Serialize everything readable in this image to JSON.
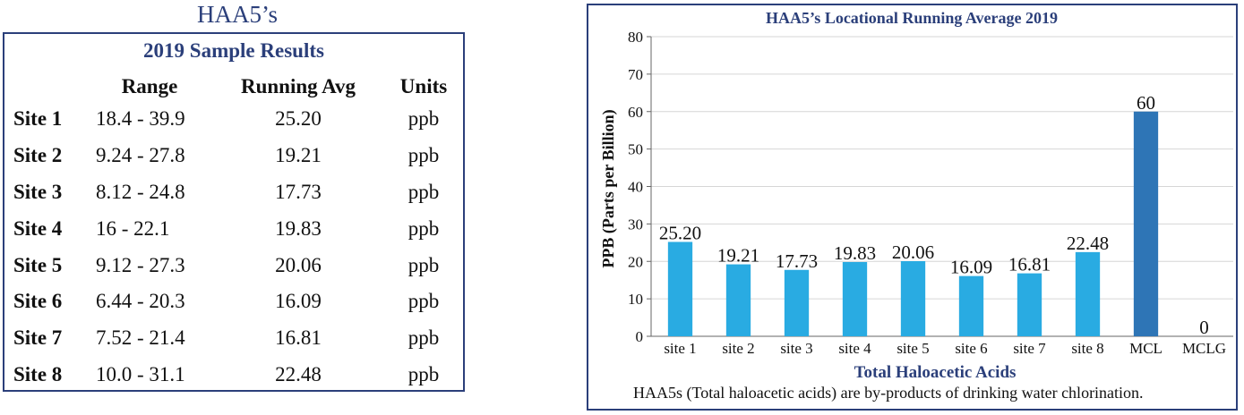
{
  "left_panel": {
    "heading": "HAA5’s",
    "table_title": "2019 Sample Results",
    "columns": {
      "range": "Range",
      "avg": "Running Avg",
      "units": "Units"
    },
    "rows": [
      {
        "site": "Site 1",
        "range": "18.4 - 39.9",
        "avg": "25.20",
        "unit": "ppb"
      },
      {
        "site": "Site 2",
        "range": "9.24 - 27.8",
        "avg": "19.21",
        "unit": "ppb"
      },
      {
        "site": "Site 3",
        "range": "8.12 - 24.8",
        "avg": "17.73",
        "unit": "ppb"
      },
      {
        "site": "Site 4",
        "range": "16 - 22.1",
        "avg": "19.83",
        "unit": "ppb"
      },
      {
        "site": "Site 5",
        "range": "9.12 - 27.3",
        "avg": "20.06",
        "unit": "ppb"
      },
      {
        "site": "Site 6",
        "range": "6.44 - 20.3",
        "avg": "16.09",
        "unit": "ppb"
      },
      {
        "site": "Site 7",
        "range": "7.52 - 21.4",
        "avg": "16.81",
        "unit": "ppb"
      },
      {
        "site": "Site 8",
        "range": "10.0 - 31.1",
        "avg": "22.48",
        "unit": "ppb"
      }
    ]
  },
  "chart_data": {
    "type": "bar",
    "title": "HAA5’s  Locational Running Average 2019",
    "xlabel": "Total Haloacetic Acids",
    "ylabel": "PPB (Parts per Billion)",
    "ylim": [
      0,
      80
    ],
    "yticks": [
      0,
      10,
      20,
      30,
      40,
      50,
      60,
      70,
      80
    ],
    "grid": true,
    "categories": [
      "site 1",
      "site 2",
      "site 3",
      "site 4",
      "site 5",
      "site 6",
      "site 7",
      "site 8",
      "MCL",
      "MCLG"
    ],
    "values": [
      25.2,
      19.21,
      17.73,
      19.83,
      20.06,
      16.09,
      16.81,
      22.48,
      60,
      0
    ],
    "value_labels": [
      "25.20",
      "19.21",
      "17.73",
      "19.83",
      "20.06",
      "16.09",
      "16.81",
      "22.48",
      "60",
      "0"
    ],
    "colors": {
      "site": "#29abe2",
      "mcl": "#2e75b6",
      "axis_title": "#2b3f7a"
    },
    "footnote": "HAA5s (Total haloacetic acids) are by-products of drinking water chlorination."
  }
}
